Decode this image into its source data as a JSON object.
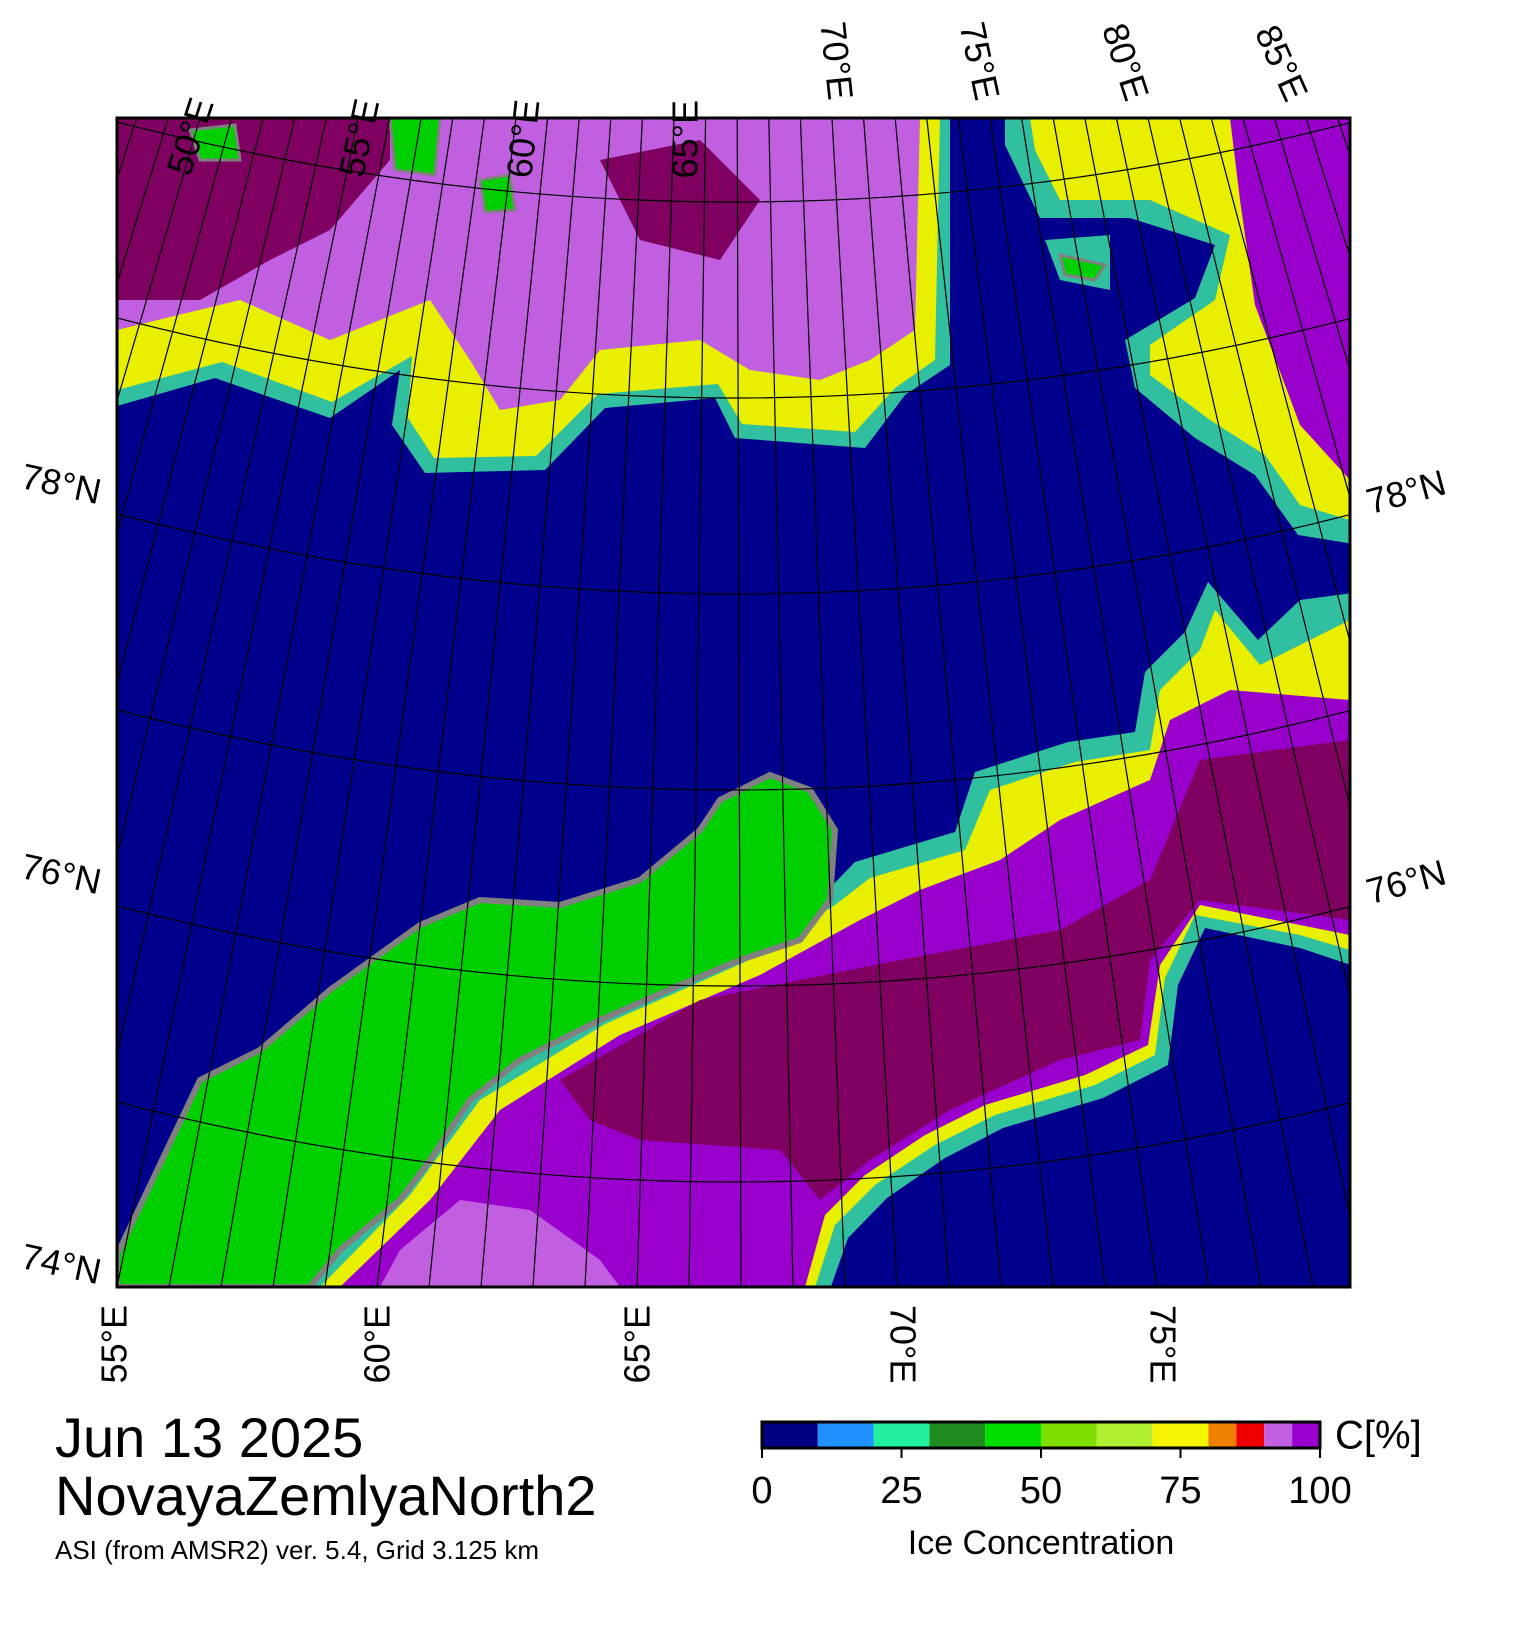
{
  "header": {
    "date": "Jun 13 2025",
    "region": "NovayaZemlyaNorth2",
    "source": "ASI (from AMSR2) ver. 5.4,  Grid 3.125 km"
  },
  "map": {
    "top_labels": [
      "50°E",
      "55°E",
      "60°E",
      "65°E",
      "70°E",
      "75°E",
      "80°E",
      "85°E"
    ],
    "bottom_labels": [
      "55°E",
      "60°E",
      "65°E",
      "70°E",
      "75°E"
    ],
    "left_labels": [
      "78°N",
      "76°N",
      "74°N"
    ],
    "right_labels": [
      "78°N",
      "76°N"
    ]
  },
  "colorbar": {
    "title": "Ice Concentration",
    "unit": "C[%]",
    "range": [
      0,
      100
    ],
    "ticks": [
      0,
      25,
      50,
      75,
      100
    ],
    "bounds": [
      0,
      10,
      20,
      30,
      40,
      50,
      60,
      70,
      80,
      85,
      90,
      95,
      100
    ],
    "colors": [
      "#000080",
      "#1e90ff",
      "#20f0a0",
      "#208c20",
      "#00e000",
      "#7fe000",
      "#b0f030",
      "#f5f500",
      "#f08000",
      "#f00000",
      "#c060e0",
      "#9900cc"
    ]
  }
}
